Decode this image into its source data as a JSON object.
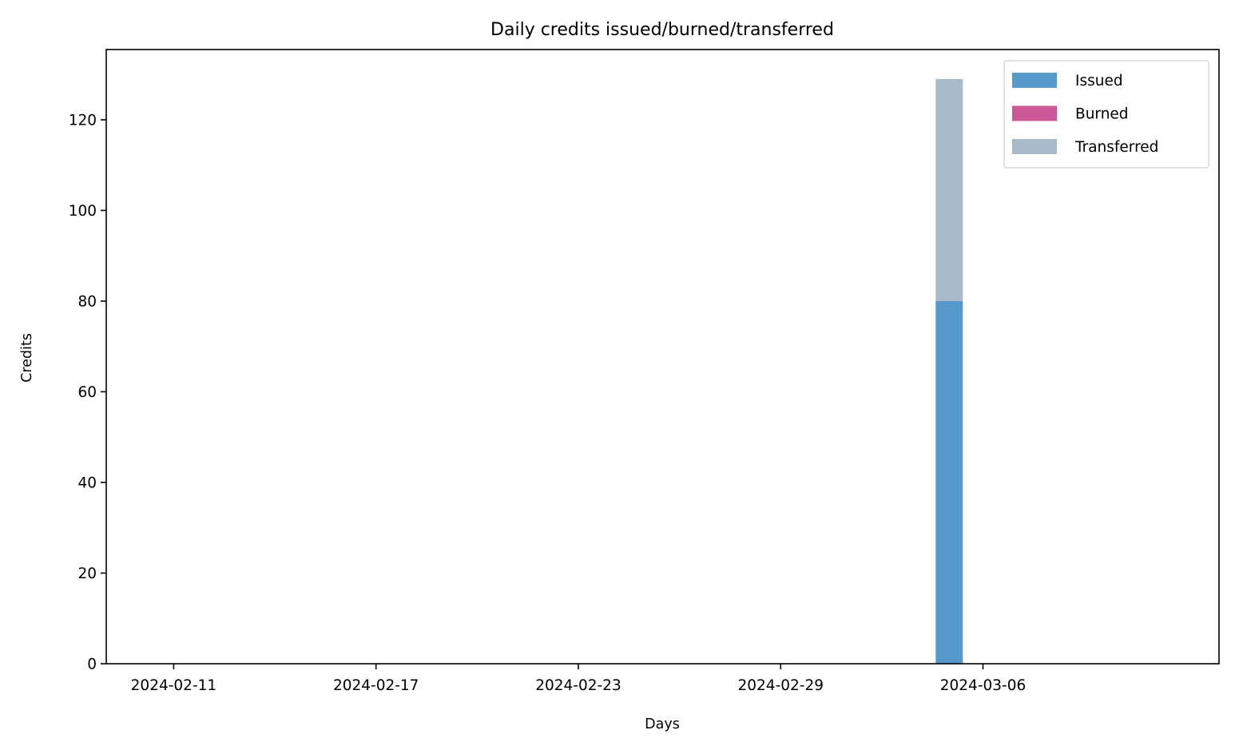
{
  "chart_data": {
    "type": "bar",
    "stacked": true,
    "title": "Daily credits issued/burned/transferred",
    "xlabel": "Days",
    "ylabel": "Credits",
    "xlim": [
      "2024-02-09",
      "2024-03-13"
    ],
    "ylim": [
      0,
      135.5
    ],
    "x_ticks": [
      "2024-02-11",
      "2024-02-17",
      "2024-02-23",
      "2024-02-29",
      "2024-03-06"
    ],
    "y_ticks": [
      0,
      20,
      40,
      60,
      80,
      100,
      120
    ],
    "grid": false,
    "legend_position": "top-right",
    "series": [
      {
        "name": "Issued",
        "color": "#5799cb",
        "points": [
          {
            "x": "2024-03-05",
            "y": 80
          }
        ]
      },
      {
        "name": "Burned",
        "color": "#cc589a",
        "points": [
          {
            "x": "2024-03-05",
            "y": 0
          }
        ]
      },
      {
        "name": "Transferred",
        "color": "#a9bacb",
        "points": [
          {
            "x": "2024-03-05",
            "y": 49
          }
        ]
      }
    ]
  }
}
